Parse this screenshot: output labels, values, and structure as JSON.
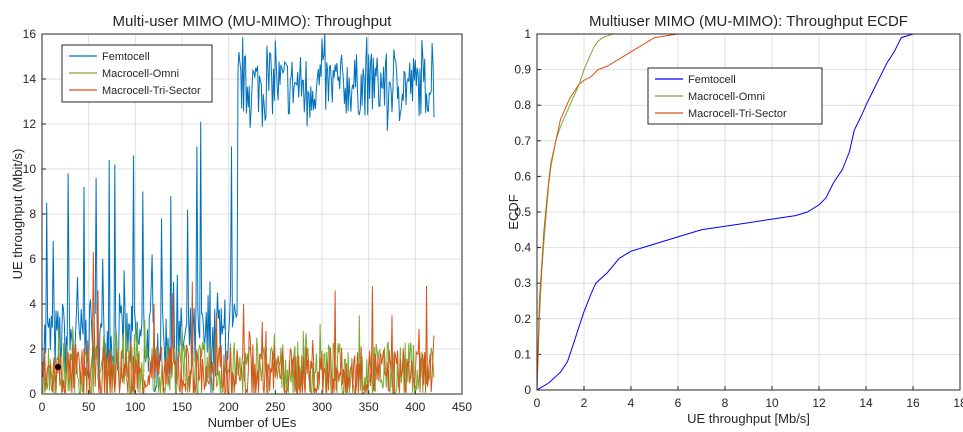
{
  "chart_data": [
    {
      "type": "line",
      "title": "Multi-user MIMO (MU-MIMO): Throughput",
      "xlabel": "Number of UEs",
      "ylabel": "UE throughput (Mbit/s)",
      "xlim": [
        0,
        450
      ],
      "ylim": [
        0,
        16
      ],
      "xticks": [
        "0",
        "50",
        "100",
        "150",
        "200",
        "250",
        "300",
        "350",
        "400",
        "450"
      ],
      "yticks": [
        "0",
        "2",
        "4",
        "6",
        "8",
        "10",
        "12",
        "14",
        "16"
      ],
      "grid": true,
      "legend_position": "top-left",
      "series": [
        {
          "name": "Femtocell",
          "color": "#0072BD",
          "segments": [
            {
              "x_start": 1,
              "x_end": 209,
              "base": 2.2,
              "spread": 1.6,
              "spikes": [
                [
                  5,
                  8.5
                ],
                [
                  12,
                  6.8
                ],
                [
                  22,
                  4.0
                ],
                [
                  28,
                  9.8
                ],
                [
                  38,
                  5.2
                ],
                [
                  45,
                  9.2
                ],
                [
                  52,
                  4.2
                ],
                [
                  58,
                  9.6
                ],
                [
                  65,
                  6.0
                ],
                [
                  72,
                  10.4
                ],
                [
                  78,
                  10.2
                ],
                [
                  88,
                  5.5
                ],
                [
                  98,
                  10.6
                ],
                [
                  108,
                  9.0
                ],
                [
                  118,
                  6.2
                ],
                [
                  128,
                  7.8
                ],
                [
                  138,
                  8.8
                ],
                [
                  145,
                  5.3
                ],
                [
                  156,
                  8.2
                ],
                [
                  166,
                  11.0
                ],
                [
                  170,
                  12.1
                ],
                [
                  180,
                  5.0
                ],
                [
                  188,
                  4.5
                ],
                [
                  196,
                  4.2
                ],
                [
                  203,
                  11.0
                ]
              ]
            },
            {
              "x_start": 209,
              "x_end": 420,
              "base": 13.6,
              "spread": 1.4,
              "spikes": [
                [
                  209,
                  4.0
                ],
                [
                  211,
                  15.2
                ],
                [
                  250,
                  15.7
                ],
                [
                  284,
                  11.9
                ],
                [
                  300,
                  15.8
                ],
                [
                  370,
                  11.7
                ],
                [
                  418,
                  15.6
                ],
                [
                  420,
                  12.3
                ]
              ]
            }
          ]
        },
        {
          "name": "Macrocell-Omni",
          "color": "#77AC30",
          "segments": [
            {
              "x_start": 1,
              "x_end": 420,
              "base": 0.9,
              "spread": 1.3,
              "spikes": [
                [
                  33,
                  3.0
                ],
                [
                  56,
                  3.2
                ],
                [
                  90,
                  3.0
                ],
                [
                  110,
                  3.3
                ],
                [
                  150,
                  3.0
                ],
                [
                  230,
                  2.5
                ],
                [
                  280,
                  2.8
                ],
                [
                  340,
                  3.5
                ],
                [
                  395,
                  2.3
                ]
              ]
            }
          ]
        },
        {
          "name": "Macrocell-Tri-Sector",
          "color": "#D95319",
          "segments": [
            {
              "x_start": 1,
              "x_end": 420,
              "base": 0.8,
              "spread": 1.2,
              "spikes": [
                [
                  55,
                  6.3
                ],
                [
                  60,
                  4.6
                ],
                [
                  120,
                  4.0
                ],
                [
                  140,
                  4.5
                ],
                [
                  161,
                  5.0
                ],
                [
                  187,
                  3.6
                ],
                [
                  216,
                  4.0
                ],
                [
                  236,
                  3.2
                ],
                [
                  314,
                  4.6
                ],
                [
                  354,
                  4.8
                ],
                [
                  375,
                  3.5
                ],
                [
                  412,
                  4.8
                ],
                [
                  420,
                  2.6
                ]
              ]
            }
          ]
        }
      ]
    },
    {
      "type": "line",
      "title": "Multiuser MIMO (MU-MIMO): Throughput ECDF",
      "xlabel": "UE throughput [Mb/s]",
      "ylabel": "ECDF",
      "xlim": [
        0,
        18
      ],
      "ylim": [
        0,
        1
      ],
      "xticks": [
        "0",
        "2",
        "4",
        "6",
        "8",
        "10",
        "12",
        "14",
        "16",
        "18"
      ],
      "yticks": [
        "0",
        "0.1",
        "0.2",
        "0.3",
        "0.4",
        "0.5",
        "0.6",
        "0.7",
        "0.8",
        "0.9",
        "1"
      ],
      "grid": true,
      "legend_position": "top-center",
      "series": [
        {
          "name": "Femtocell",
          "color": "#0000FF",
          "x": [
            0,
            0.5,
            1.0,
            1.3,
            1.5,
            1.8,
            2.0,
            2.3,
            2.5,
            3.0,
            3.5,
            4.0,
            5.0,
            6.0,
            7.0,
            8.0,
            9.0,
            10.0,
            11.0,
            11.5,
            12.0,
            12.3,
            12.6,
            13.0,
            13.3,
            13.5,
            13.8,
            14.0,
            14.3,
            14.6,
            14.9,
            15.2,
            15.5,
            16.0,
            16.3
          ],
          "y": [
            0,
            0.02,
            0.05,
            0.08,
            0.12,
            0.18,
            0.22,
            0.27,
            0.3,
            0.33,
            0.37,
            0.39,
            0.41,
            0.43,
            0.45,
            0.46,
            0.47,
            0.48,
            0.49,
            0.5,
            0.52,
            0.54,
            0.58,
            0.62,
            0.67,
            0.73,
            0.77,
            0.8,
            0.84,
            0.88,
            0.92,
            0.95,
            0.99,
            1.0,
            1.0
          ]
        },
        {
          "name": "Macrocell-Omni",
          "color": "#77AC30",
          "x": [
            0,
            0.1,
            0.2,
            0.3,
            0.4,
            0.5,
            0.6,
            0.8,
            1.0,
            1.2,
            1.4,
            1.6,
            1.8,
            2.0,
            2.2,
            2.4,
            2.6,
            2.8,
            3.0,
            3.2
          ],
          "y": [
            0,
            0.2,
            0.33,
            0.42,
            0.5,
            0.58,
            0.63,
            0.7,
            0.74,
            0.77,
            0.8,
            0.83,
            0.86,
            0.9,
            0.93,
            0.96,
            0.98,
            0.99,
            0.995,
            1.0
          ]
        },
        {
          "name": "Macrocell-Tri-Sector",
          "color": "#D95319",
          "x": [
            0,
            0.1,
            0.2,
            0.3,
            0.4,
            0.5,
            0.6,
            0.8,
            1.0,
            1.2,
            1.4,
            1.6,
            1.8,
            2.0,
            2.3,
            2.6,
            3.0,
            3.5,
            4.0,
            4.5,
            5.0,
            5.5,
            6.0,
            6.3
          ],
          "y": [
            0,
            0.25,
            0.35,
            0.45,
            0.52,
            0.59,
            0.64,
            0.7,
            0.76,
            0.79,
            0.82,
            0.84,
            0.86,
            0.87,
            0.88,
            0.9,
            0.91,
            0.93,
            0.95,
            0.97,
            0.99,
            0.995,
            1.0,
            1.0
          ]
        }
      ]
    }
  ]
}
